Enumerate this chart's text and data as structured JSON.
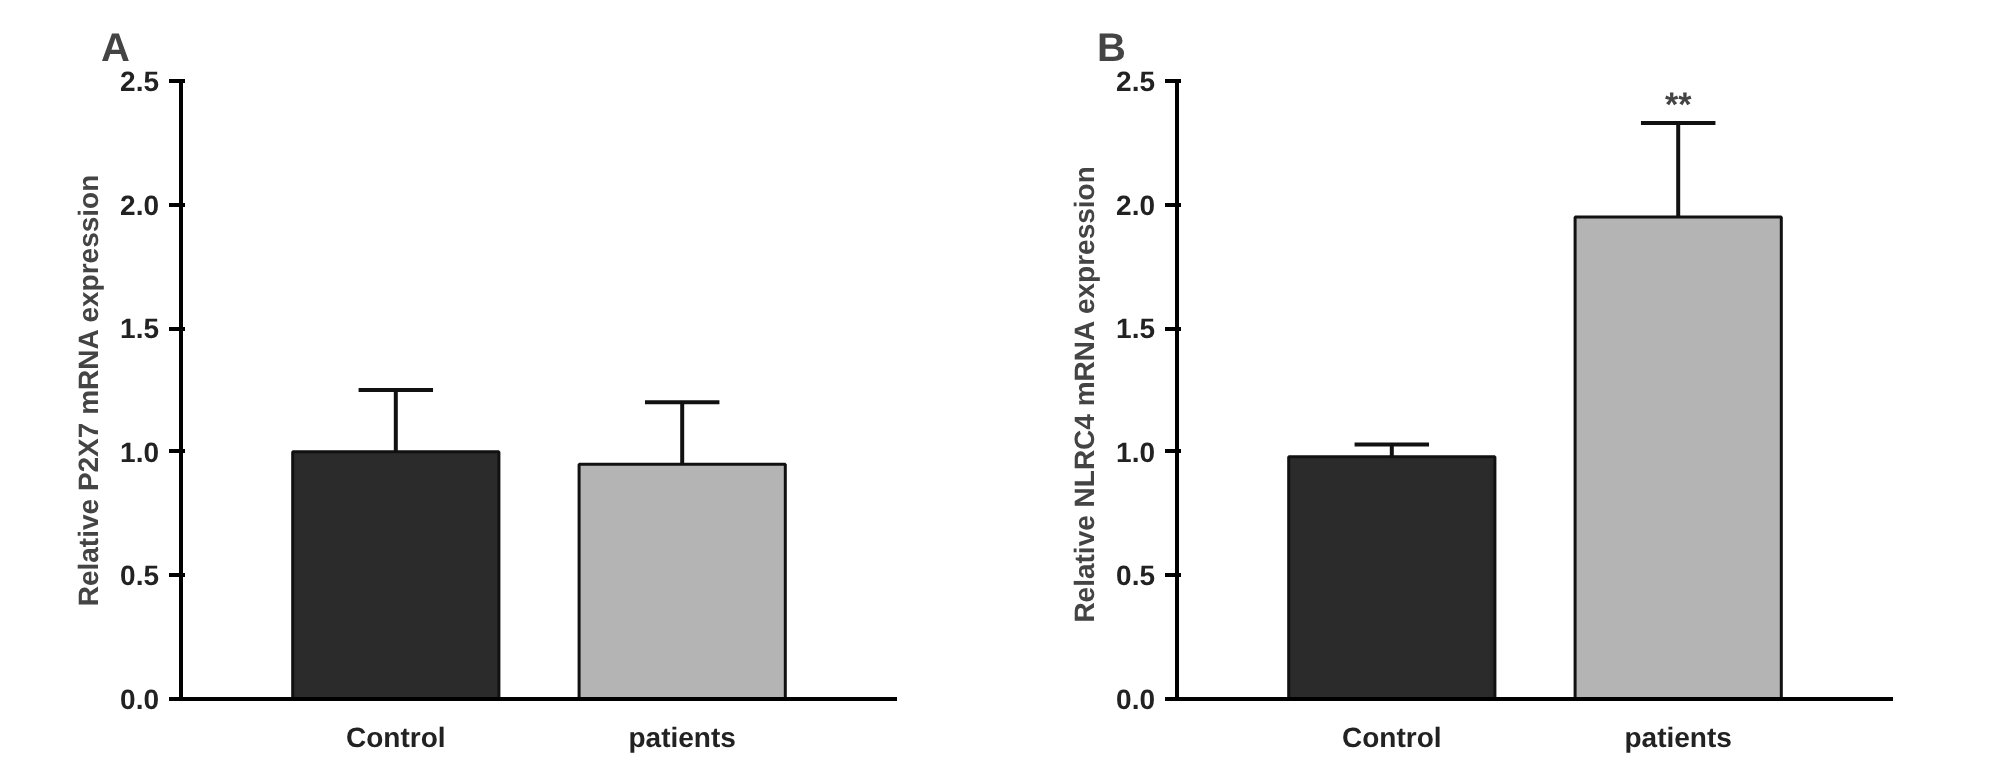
{
  "chart_data": [
    {
      "type": "bar",
      "title": "A",
      "ylabel": "Relative P2X7 mRNA expression",
      "categories": [
        "Control",
        "patients"
      ],
      "values": [
        1.0,
        0.95
      ],
      "colors": [
        "#2b2b2b",
        "#b4b4b4"
      ],
      "errors": [
        [
          1.0,
          1.25
        ],
        [
          0.95,
          1.2
        ]
      ],
      "ylim": [
        0,
        2.5
      ],
      "yticks": [
        {
          "value": 0,
          "label": "0.0"
        },
        {
          "value": 0.5,
          "label": "0.5"
        },
        {
          "value": 1,
          "label": "1.0"
        },
        {
          "value": 1.5,
          "label": "1.5"
        },
        {
          "value": 2,
          "label": "2.0"
        },
        {
          "value": 2.5,
          "label": "2.5"
        }
      ],
      "grid": false
    },
    {
      "type": "bar",
      "title": "B",
      "ylabel": "Relative NLRC4  mRNA expression",
      "categories": [
        "Control",
        "patients"
      ],
      "values": [
        0.98,
        1.95
      ],
      "colors": [
        "#2b2b2b",
        "#b4b4b4"
      ],
      "errors": [
        [
          0.98,
          1.03
        ],
        [
          1.95,
          2.33
        ]
      ],
      "ylim": [
        0,
        2.5
      ],
      "yticks": [
        {
          "value": 0,
          "label": "0.0"
        },
        {
          "value": 0.5,
          "label": "0.5"
        },
        {
          "value": 1,
          "label": "1.0"
        },
        {
          "value": 1.5,
          "label": "1.5"
        },
        {
          "value": 2,
          "label": "2.0"
        },
        {
          "value": 2.5,
          "label": "2.5"
        }
      ],
      "grid": false,
      "annotations": [
        "**"
      ]
    }
  ]
}
